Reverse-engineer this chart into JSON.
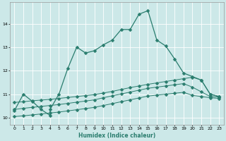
{
  "xlabel": "Humidex (Indice chaleur)",
  "background_color": "#cce8e8",
  "line_color": "#2a7d6e",
  "grid_color": "#ffffff",
  "xlim": [
    -0.5,
    23.5
  ],
  "ylim": [
    9.7,
    14.9
  ],
  "xticks": [
    0,
    1,
    2,
    3,
    4,
    5,
    6,
    7,
    8,
    9,
    10,
    11,
    12,
    13,
    14,
    15,
    16,
    17,
    18,
    19,
    20,
    21,
    22,
    23
  ],
  "yticks": [
    10,
    11,
    12,
    13,
    14
  ],
  "line1_x": [
    0,
    1,
    2,
    3,
    4,
    4,
    5,
    6,
    7,
    8,
    9,
    10,
    11,
    12,
    13,
    14,
    15,
    16,
    17,
    18,
    19,
    20,
    21,
    22,
    23
  ],
  "line1_y": [
    10.3,
    11.0,
    10.7,
    10.35,
    10.1,
    10.35,
    11.0,
    12.1,
    13.0,
    12.75,
    12.85,
    13.1,
    13.3,
    13.75,
    13.75,
    14.4,
    14.55,
    13.3,
    13.05,
    12.5,
    11.9,
    11.75,
    11.6,
    11.0,
    10.9
  ],
  "line2_x": [
    0,
    1,
    2,
    3,
    4,
    5,
    6,
    7,
    8,
    9,
    10,
    11,
    12,
    13,
    14,
    15,
    16,
    17,
    18,
    19,
    20,
    21,
    22,
    23
  ],
  "line2_y": [
    10.65,
    10.68,
    10.72,
    10.75,
    10.78,
    10.82,
    10.86,
    10.9,
    10.94,
    10.98,
    11.05,
    11.12,
    11.2,
    11.28,
    11.35,
    11.42,
    11.48,
    11.54,
    11.6,
    11.66,
    11.72,
    11.6,
    11.0,
    10.9
  ],
  "line3_x": [
    0,
    1,
    2,
    3,
    4,
    5,
    6,
    7,
    8,
    9,
    10,
    11,
    12,
    13,
    14,
    15,
    16,
    17,
    18,
    19,
    20,
    21,
    22,
    23
  ],
  "line3_y": [
    10.35,
    10.4,
    10.44,
    10.48,
    10.52,
    10.56,
    10.61,
    10.66,
    10.71,
    10.76,
    10.85,
    10.93,
    11.01,
    11.09,
    11.17,
    11.25,
    11.3,
    11.35,
    11.4,
    11.45,
    11.3,
    11.1,
    10.9,
    10.88
  ],
  "line4_x": [
    0,
    1,
    2,
    3,
    4,
    5,
    6,
    7,
    8,
    9,
    10,
    11,
    12,
    13,
    14,
    15,
    16,
    17,
    18,
    19,
    20,
    21,
    22,
    23
  ],
  "line4_y": [
    10.05,
    10.08,
    10.12,
    10.16,
    10.2,
    10.24,
    10.29,
    10.34,
    10.39,
    10.44,
    10.52,
    10.6,
    10.68,
    10.76,
    10.84,
    10.92,
    10.96,
    11.0,
    11.04,
    11.08,
    10.95,
    10.9,
    10.85,
    10.82
  ]
}
